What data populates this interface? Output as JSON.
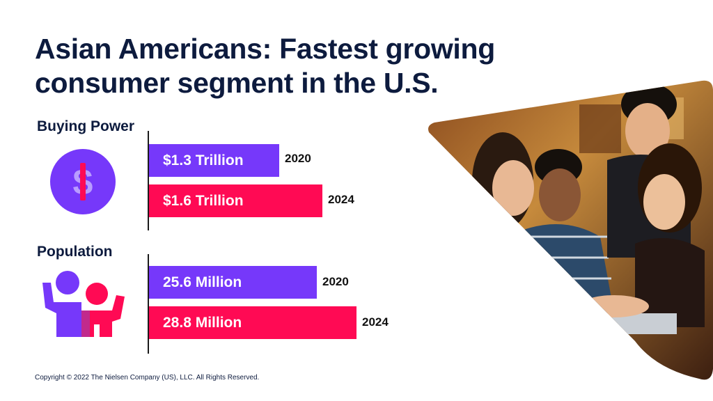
{
  "title": "Asian Americans: Fastest growing consumer segment in the U.S.",
  "footer": {
    "copyright": "Copyright © 2022 The Nielsen Company (US), LLC. All Rights Reserved."
  },
  "colors": {
    "year_2020": "#7638fa",
    "year_2024": "#ff0a54",
    "title": "#0d1b3e"
  },
  "icons": {
    "buying_power": "dollar-coin-icon",
    "population": "people-group-icon"
  },
  "chart_data": [
    {
      "type": "bar",
      "orientation": "horizontal",
      "title": "Buying Power",
      "unit": "Trillion",
      "categories": [
        "2020",
        "2024"
      ],
      "values": [
        1.3,
        1.6
      ],
      "value_labels": [
        "$1.3 Trillion",
        "$1.6 Trillion"
      ],
      "grid": false
    },
    {
      "type": "bar",
      "orientation": "horizontal",
      "title": "Population",
      "unit": "Million",
      "categories": [
        "2020",
        "2024"
      ],
      "values": [
        25.6,
        28.8
      ],
      "value_labels": [
        "25.6 Million",
        "28.8 Million"
      ],
      "grid": false
    }
  ]
}
